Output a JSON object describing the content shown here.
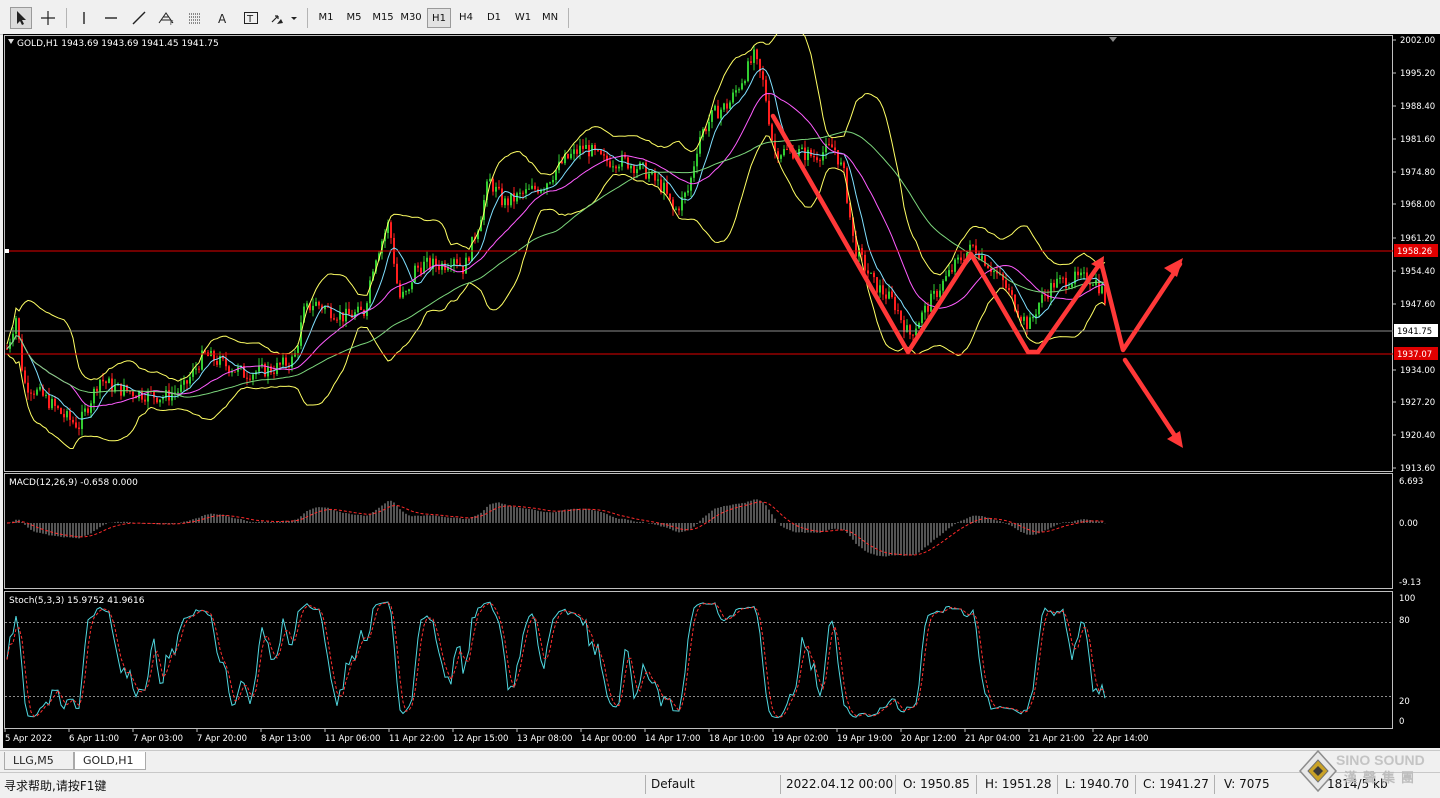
{
  "toolbar": {
    "tools": [
      "cursor-icon",
      "crosshair-icon",
      "vertical-line-icon",
      "horizontal-line-icon",
      "trendline-icon",
      "fibonacci-icon",
      "channel-icon",
      "text-icon",
      "text-label-icon",
      "arrows-shapes-icon"
    ],
    "timeframes": [
      "M1",
      "M5",
      "M15",
      "M30",
      "H1",
      "H4",
      "D1",
      "W1",
      "MN"
    ],
    "active_timeframe": "H1"
  },
  "chart": {
    "header": "GOLD,H1  1943.69 1943.69 1941.45 1941.75",
    "price_axis_labels": [
      "2002.00",
      "1995.20",
      "1988.40",
      "1981.60",
      "1974.80",
      "1968.00",
      "1961.20",
      "1954.40",
      "1947.60",
      "1934.00",
      "1927.20",
      "1920.40",
      "1913.60"
    ],
    "current_price_label": "1941.75",
    "hline_upper_label": "1958.26",
    "hline_lower_label": "1937.07",
    "macd_label": "MACD(12,26,9) -0.658 0.000",
    "macd_axis": [
      "6.693",
      "0.00",
      "-9.13"
    ],
    "stoch_label": "Stoch(5,3,3) 15.9752 41.9616",
    "stoch_axis": [
      "100",
      "80",
      "20",
      "0"
    ],
    "time_labels": [
      "5 Apr 2022",
      "6 Apr 11:00",
      "7 Apr 03:00",
      "7 Apr 20:00",
      "8 Apr 13:00",
      "11 Apr 06:00",
      "11 Apr 22:00",
      "12 Apr 15:00",
      "13 Apr 08:00",
      "14 Apr 00:00",
      "14 Apr 17:00",
      "18 Apr 10:00",
      "19 Apr 02:00",
      "19 Apr 19:00",
      "20 Apr 12:00",
      "21 Apr 04:00",
      "21 Apr 21:00",
      "22 Apr 14:00"
    ],
    "colors": {
      "background": "#000000",
      "bull": "#32cd32",
      "bear": "#ff1e1e",
      "bands": "#ffff64",
      "ma_fast": "#7fe0ff",
      "ma_mid": "#ff5cff",
      "ma_slow": "#7cd67c",
      "hline": "#e00000",
      "arrow": "#ff3838",
      "macd_hist": "#d4d4d4",
      "signal": "#ff2a2a",
      "stoch_main": "#50d8e0",
      "stoch_signal": "#ff3030"
    }
  },
  "chart_data": {
    "type": "candlestick",
    "symbol": "GOLD",
    "timeframe": "H1",
    "ylim": [
      1912,
      2004
    ],
    "price_path": [
      [
        0,
        1934
      ],
      [
        12,
        1943
      ],
      [
        20,
        1929
      ],
      [
        40,
        1926
      ],
      [
        60,
        1922
      ],
      [
        75,
        1920
      ],
      [
        90,
        1927
      ],
      [
        95,
        1930
      ],
      [
        110,
        1928
      ],
      [
        130,
        1927
      ],
      [
        160,
        1926
      ],
      [
        180,
        1928
      ],
      [
        200,
        1935
      ],
      [
        220,
        1933
      ],
      [
        240,
        1931
      ],
      [
        270,
        1932
      ],
      [
        290,
        1934
      ],
      [
        300,
        1944
      ],
      [
        310,
        1946
      ],
      [
        320,
        1945
      ],
      [
        340,
        1943
      ],
      [
        360,
        1944
      ],
      [
        370,
        1955
      ],
      [
        385,
        1963
      ],
      [
        395,
        1947
      ],
      [
        405,
        1948
      ],
      [
        410,
        1953
      ],
      [
        420,
        1954
      ],
      [
        440,
        1954
      ],
      [
        450,
        1956
      ],
      [
        460,
        1953
      ],
      [
        475,
        1963
      ],
      [
        485,
        1972
      ],
      [
        500,
        1967
      ],
      [
        520,
        1969
      ],
      [
        540,
        1971
      ],
      [
        560,
        1976
      ],
      [
        580,
        1979
      ],
      [
        600,
        1976
      ],
      [
        620,
        1976
      ],
      [
        640,
        1974
      ],
      [
        660,
        1970
      ],
      [
        670,
        1965
      ],
      [
        685,
        1970
      ],
      [
        695,
        1981
      ],
      [
        710,
        1986
      ],
      [
        725,
        1988
      ],
      [
        740,
        1994
      ],
      [
        750,
        1998
      ],
      [
        760,
        1992
      ],
      [
        770,
        1978
      ],
      [
        790,
        1978
      ],
      [
        810,
        1977
      ],
      [
        830,
        1979
      ],
      [
        840,
        1973
      ],
      [
        850,
        1958
      ],
      [
        870,
        1950
      ],
      [
        890,
        1946
      ],
      [
        905,
        1939
      ],
      [
        920,
        1944
      ],
      [
        935,
        1949
      ],
      [
        955,
        1955
      ],
      [
        970,
        1958
      ],
      [
        985,
        1954
      ],
      [
        1000,
        1950
      ],
      [
        1015,
        1944
      ],
      [
        1025,
        1941
      ],
      [
        1035,
        1946
      ],
      [
        1050,
        1950
      ],
      [
        1070,
        1951
      ],
      [
        1090,
        1951
      ],
      [
        1100,
        1948
      ],
      [
        1105,
        1941
      ]
    ],
    "hlines": [
      1958.26,
      1937.07
    ],
    "current_price": 1941.75,
    "macd": {
      "params": [
        12,
        26,
        9
      ],
      "value": -0.658,
      "signal": 0.0,
      "ylim": [
        -9.13,
        6.693
      ]
    },
    "stochastic": {
      "params": [
        5,
        3,
        3
      ],
      "k": 15.9752,
      "d": 41.9616,
      "levels": [
        20,
        80
      ]
    }
  },
  "tabs": [
    "LLG,M5",
    "GOLD,H1"
  ],
  "active_tab": "GOLD,H1",
  "status": {
    "help": "寻求帮助,请按F1键",
    "profile": "Default",
    "datetime": "2022.04.12 00:00",
    "open": "O: 1950.85",
    "high": "H: 1951.28",
    "low": "L: 1940.70",
    "close": "C: 1941.27",
    "volume": "V: 7075",
    "traffic": "1814/5 kb"
  },
  "logo": {
    "en": "SINO SOUND",
    "cn": "漢聲集團"
  }
}
